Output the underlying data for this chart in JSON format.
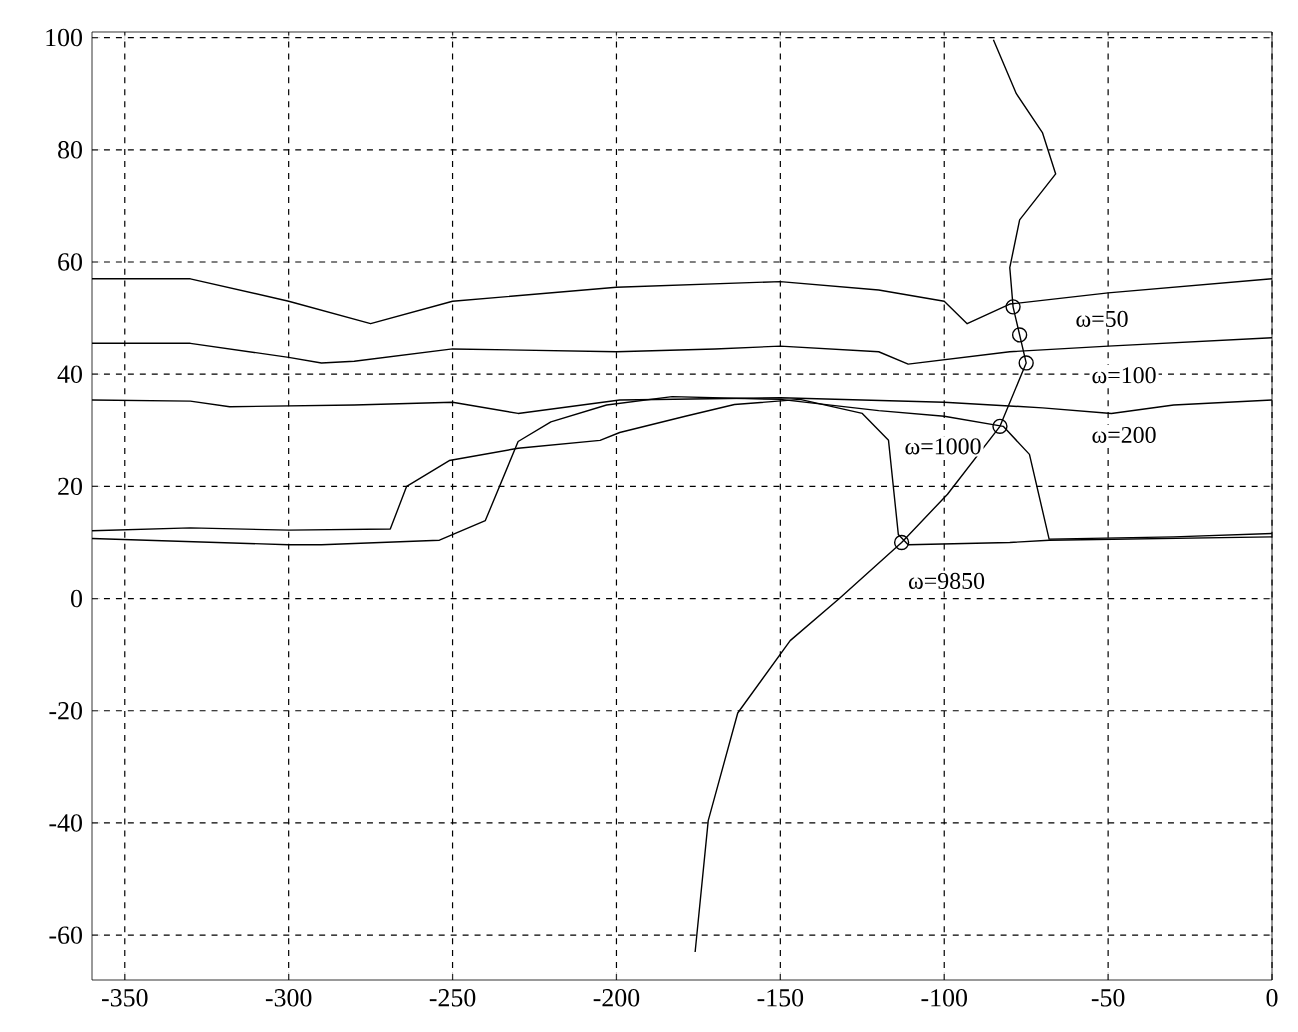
{
  "chart_data": {
    "type": "line",
    "xlim": [
      -360,
      0
    ],
    "ylim": [
      -68,
      101
    ],
    "xticks": [
      -350,
      -300,
      -250,
      -200,
      -150,
      -100,
      -50,
      0
    ],
    "yticks": [
      -60,
      -40,
      -20,
      0,
      20,
      40,
      60,
      80,
      100
    ],
    "grid": true,
    "line_style": "solid",
    "series": [
      {
        "color": "#000000",
        "marker": "none",
        "x": [
          -360,
          -330,
          -300,
          -275,
          -250,
          -200,
          -150,
          -120,
          -100,
          -93,
          -80,
          -50,
          0
        ],
        "values": [
          57,
          57,
          53,
          49,
          53,
          55.5,
          56.5,
          55,
          53,
          49,
          52.5,
          54.5,
          57
        ]
      },
      {
        "color": "#000000",
        "marker": "none",
        "x": [
          -360,
          -330,
          -300,
          -290,
          -280,
          -250,
          -200,
          -170,
          -150,
          -120,
          -111,
          -80,
          -50,
          0
        ],
        "values": [
          45.5,
          45.5,
          43,
          42,
          42.3,
          44.5,
          44,
          44.5,
          45,
          44,
          41.8,
          44,
          45,
          46.5
        ]
      },
      {
        "color": "#000000",
        "marker": "none",
        "x": [
          -360,
          -330,
          -318,
          -280,
          -250,
          -230,
          -199,
          -150,
          -100,
          -70,
          -49,
          -30,
          0
        ],
        "values": [
          35.4,
          35.2,
          34.2,
          34.5,
          35,
          33,
          35.4,
          35.8,
          35,
          34,
          33,
          34.5,
          35.4
        ]
      },
      {
        "color": "#000000",
        "marker": "none",
        "x": [
          -360,
          -300,
          -290,
          -254,
          -240,
          -230,
          -220,
          -203,
          -183,
          -150,
          -120,
          -100,
          -82,
          -74,
          -68,
          -30,
          0
        ],
        "values": [
          10.7,
          9.6,
          9.6,
          10.4,
          13.9,
          28,
          31.5,
          34.5,
          36,
          35.5,
          33.5,
          32.5,
          30.7,
          25.7,
          10.6,
          11,
          11.6
        ]
      },
      {
        "color": "#000000",
        "marker": "none",
        "x": [
          -360,
          -330,
          -300,
          -269,
          -264,
          -251,
          -230,
          -205,
          -199,
          -179,
          -164,
          -144,
          -125,
          -117,
          -114,
          -111,
          -80,
          -68,
          0
        ],
        "values": [
          12.1,
          12.6,
          12.2,
          12.4,
          20,
          24.6,
          26.8,
          28.2,
          29.6,
          32.5,
          34.6,
          35.5,
          33,
          28.2,
          11.4,
          9.6,
          10,
          10.4,
          11
        ]
      },
      {
        "color": "#000000",
        "marker": "none",
        "x": [
          -176,
          -172,
          -163,
          -147,
          -132,
          -113,
          -99,
          -83,
          -75,
          -79,
          -80,
          -77,
          -66,
          -70,
          -78,
          -85
        ],
        "values": [
          -63,
          -39.6,
          -20.4,
          -7.5,
          0,
          10,
          18.6,
          30.7,
          42,
          52,
          59,
          67.5,
          75.7,
          83,
          90,
          99.6
        ]
      },
      {
        "type": "scatter",
        "color": "#000000",
        "marker": "circle",
        "x": [
          -79,
          -77,
          -75,
          -83,
          -113
        ],
        "values": [
          52,
          47,
          42,
          30.7,
          10
        ]
      }
    ],
    "annotations": [
      {
        "text": "ω=50",
        "x": -79,
        "y": 52
      },
      "ω=100",
      "ω=200",
      {
        "text": "ω=1000",
        "x": -83,
        "y": 30.7
      },
      {
        "text": "ω=9850",
        "x": -113,
        "y": 10
      }
    ]
  }
}
